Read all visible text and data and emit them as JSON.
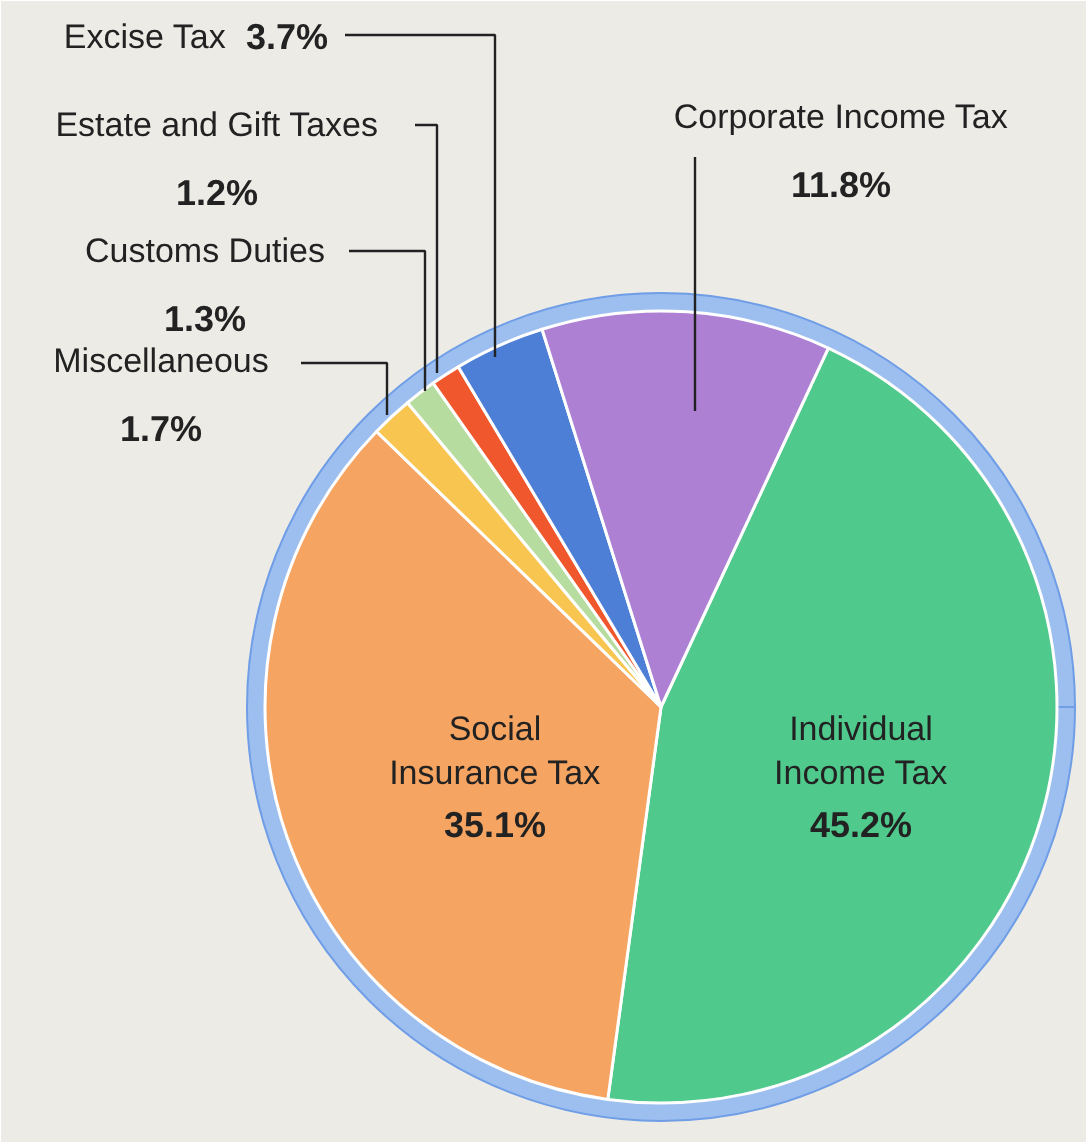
{
  "chart_data": {
    "type": "pie",
    "categories": [
      "Individual Income Tax",
      "Social Insurance Tax",
      "Miscellaneous",
      "Customs Duties",
      "Estate and Gift Taxes",
      "Excise Tax",
      "Corporate Income Tax"
    ],
    "values": [
      45.2,
      35.1,
      1.7,
      1.3,
      1.2,
      3.7,
      11.8
    ],
    "value_labels": [
      "45.2%",
      "35.1%",
      "1.7%",
      "1.3%",
      "1.2%",
      "3.7%",
      "11.8%"
    ],
    "colors": [
      "#4fc98c",
      "#f6a462",
      "#f8c650",
      "#b7dca0",
      "#f0572d",
      "#4d7fd6",
      "#ad80d4"
    ]
  }
}
